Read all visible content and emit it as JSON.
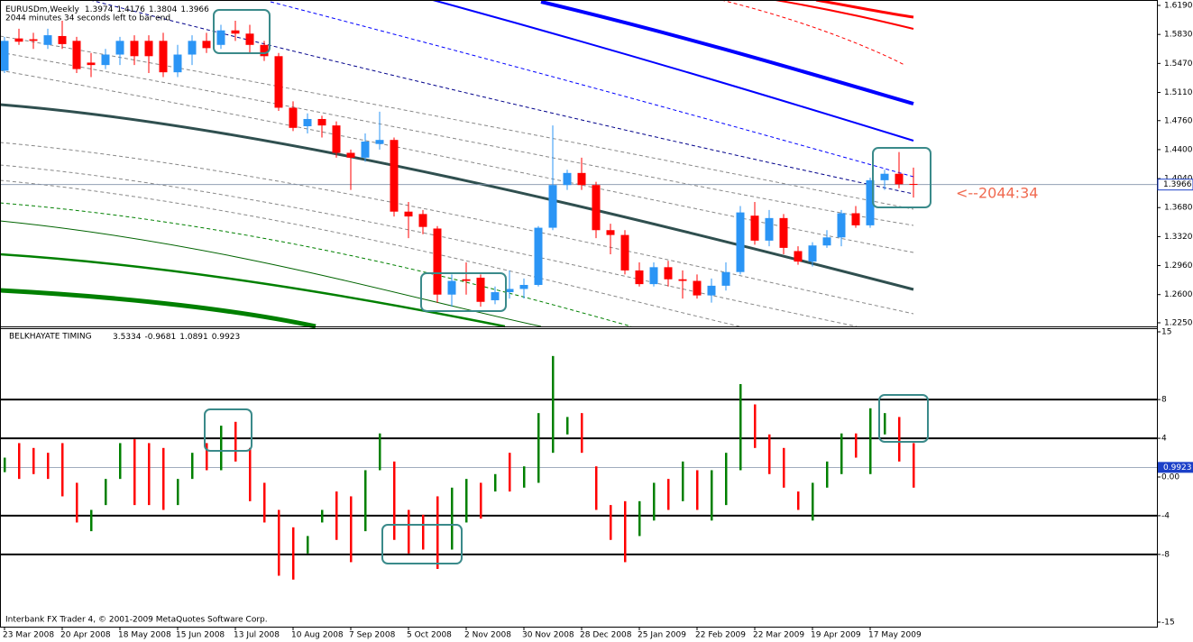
{
  "chart_data": {
    "type": "candlestick",
    "title": "EURUSDm,Weekly",
    "note": "2044 minutes 34 seconds left to bar end",
    "timer_label": "<--2044:34",
    "footer": "Interbank FX Trader 4, © 2001-2009 MetaQuotes Software Corp.",
    "up_color": "#2b95f5",
    "down_color": "#ff0000",
    "ylim": [
      1.2205,
      1.6235
    ],
    "yticks": [
      {
        "value": 1.619,
        "label": "1.6190"
      },
      {
        "value": 1.583,
        "label": "1.5830"
      },
      {
        "value": 1.547,
        "label": "1.5470"
      },
      {
        "value": 1.511,
        "label": "1.5110"
      },
      {
        "value": 1.476,
        "label": "1.4760"
      },
      {
        "value": 1.44,
        "label": "1.4400"
      },
      {
        "value": 1.404,
        "label": "1.4040"
      },
      {
        "value": 1.368,
        "label": "1.3680"
      },
      {
        "value": 1.332,
        "label": "1.3320"
      },
      {
        "value": 1.296,
        "label": "1.2960"
      },
      {
        "value": 1.26,
        "label": "1.2600"
      },
      {
        "value": 1.225,
        "label": "1.2250"
      }
    ],
    "categories": [
      "23 Mar 2008",
      null,
      null,
      null,
      "20 Apr 2008",
      null,
      null,
      null,
      "18 May 2008",
      null,
      null,
      null,
      "15 Jun 2008",
      null,
      null,
      null,
      "13 Jul 2008",
      null,
      null,
      null,
      "10 Aug 2008",
      null,
      null,
      null,
      "7 Sep 2008",
      null,
      null,
      null,
      "5 Oct 2008",
      null,
      null,
      null,
      "2 Nov 2008",
      null,
      null,
      null,
      "30 Nov 2008",
      null,
      null,
      null,
      "28 Dec 2008",
      null,
      null,
      null,
      "25 Jan 2009",
      null,
      null,
      null,
      "22 Feb 2009",
      null,
      null,
      null,
      "22 Mar 2009",
      null,
      null,
      null,
      "19 Apr 2009",
      null,
      null,
      null,
      "17 May 2009",
      null,
      null,
      null
    ],
    "candles": [
      [
        1.538,
        1.58,
        1.535,
        1.575
      ],
      [
        1.578,
        1.59,
        1.57,
        1.574
      ],
      [
        1.577,
        1.585,
        1.565,
        1.575
      ],
      [
        1.57,
        1.59,
        1.565,
        1.582
      ],
      [
        1.581,
        1.6,
        1.565,
        1.571
      ],
      [
        1.575,
        1.58,
        1.535,
        1.54
      ],
      [
        1.548,
        1.56,
        1.53,
        1.545
      ],
      [
        1.545,
        1.565,
        1.54,
        1.558
      ],
      [
        1.558,
        1.58,
        1.545,
        1.575
      ],
      [
        1.575,
        1.582,
        1.545,
        1.556
      ],
      [
        1.575,
        1.582,
        1.535,
        1.556
      ],
      [
        1.575,
        1.585,
        1.53,
        1.536
      ],
      [
        1.536,
        1.57,
        1.53,
        1.558
      ],
      [
        1.558,
        1.582,
        1.545,
        1.575
      ],
      [
        1.575,
        1.585,
        1.56,
        1.566
      ],
      [
        1.57,
        1.595,
        1.565,
        1.588
      ],
      [
        1.588,
        1.6,
        1.575,
        1.584
      ],
      [
        1.584,
        1.595,
        1.56,
        1.57
      ],
      [
        1.57,
        1.575,
        1.55,
        1.556
      ],
      [
        1.556,
        1.56,
        1.488,
        1.492
      ],
      [
        1.492,
        1.5,
        1.463,
        1.467
      ],
      [
        1.469,
        1.485,
        1.46,
        1.478
      ],
      [
        1.478,
        1.482,
        1.455,
        1.47
      ],
      [
        1.47,
        1.475,
        1.43,
        1.436
      ],
      [
        1.436,
        1.44,
        1.39,
        1.43
      ],
      [
        1.43,
        1.46,
        1.425,
        1.45
      ],
      [
        1.447,
        1.487,
        1.44,
        1.452
      ],
      [
        1.452,
        1.455,
        1.357,
        1.363
      ],
      [
        1.363,
        1.375,
        1.33,
        1.357
      ],
      [
        1.36,
        1.365,
        1.335,
        1.344
      ],
      [
        1.342,
        1.345,
        1.25,
        1.26
      ],
      [
        1.26,
        1.285,
        1.245,
        1.277
      ],
      [
        1.279,
        1.3,
        1.26,
        1.277
      ],
      [
        1.281,
        1.285,
        1.245,
        1.251
      ],
      [
        1.253,
        1.27,
        1.248,
        1.263
      ],
      [
        1.263,
        1.29,
        1.255,
        1.267
      ],
      [
        1.267,
        1.28,
        1.255,
        1.272
      ],
      [
        1.272,
        1.345,
        1.27,
        1.343
      ],
      [
        1.343,
        1.47,
        1.34,
        1.396
      ],
      [
        1.396,
        1.415,
        1.39,
        1.411
      ],
      [
        1.411,
        1.43,
        1.39,
        1.396
      ],
      [
        1.396,
        1.4,
        1.33,
        1.34
      ],
      [
        1.34,
        1.348,
        1.31,
        1.334
      ],
      [
        1.334,
        1.34,
        1.285,
        1.29
      ],
      [
        1.29,
        1.3,
        1.27,
        1.273
      ],
      [
        1.273,
        1.3,
        1.27,
        1.294
      ],
      [
        1.294,
        1.302,
        1.27,
        1.279
      ],
      [
        1.279,
        1.29,
        1.255,
        1.277
      ],
      [
        1.277,
        1.285,
        1.255,
        1.259
      ],
      [
        1.259,
        1.28,
        1.25,
        1.271
      ],
      [
        1.271,
        1.3,
        1.265,
        1.288
      ],
      [
        1.288,
        1.37,
        1.285,
        1.362
      ],
      [
        1.358,
        1.375,
        1.322,
        1.327
      ],
      [
        1.327,
        1.365,
        1.32,
        1.355
      ],
      [
        1.355,
        1.36,
        1.31,
        1.318
      ],
      [
        1.314,
        1.32,
        1.297,
        1.301
      ],
      [
        1.301,
        1.325,
        1.295,
        1.321
      ],
      [
        1.321,
        1.34,
        1.318,
        1.331
      ],
      [
        1.331,
        1.365,
        1.32,
        1.361
      ],
      [
        1.361,
        1.37,
        1.343,
        1.346
      ],
      [
        1.346,
        1.405,
        1.343,
        1.402
      ],
      [
        1.402,
        1.415,
        1.39,
        1.41
      ],
      [
        1.41,
        1.437,
        1.392,
        1.397
      ],
      [
        1.3974,
        1.4176,
        1.3804,
        1.3966
      ]
    ],
    "indicator": {
      "type": "bar",
      "title": "BELKHAYATE TIMING",
      "header_values": [
        3.5334,
        -0.9681,
        1.0891,
        0.9923
      ],
      "up_color": "#008000",
      "down_color": "#ff0000",
      "ylim": [
        -15,
        15
      ],
      "yticks": [
        15,
        8,
        4,
        {
          "value": 0,
          "label": "0.00"
        },
        -4,
        -8,
        -15
      ],
      "levels": [
        8,
        4,
        -4,
        -8
      ],
      "bars": [
        [
          0.5,
          2.0
        ],
        [
          3.5,
          -0.2
        ],
        [
          3.0,
          0.3
        ],
        [
          2.5,
          -0.2
        ],
        [
          3.5,
          -2.0
        ],
        [
          -0.6,
          -4.7
        ],
        [
          -5.6,
          -3.4
        ],
        [
          -2.9,
          -0.2
        ],
        [
          -0.2,
          3.5
        ],
        [
          3.9,
          -2.9
        ],
        [
          3.5,
          -2.9
        ],
        [
          3.0,
          -3.4
        ],
        [
          -2.9,
          -0.2
        ],
        [
          -0.2,
          2.5
        ],
        [
          3.5,
          0.7
        ],
        [
          0.7,
          5.3
        ],
        [
          5.7,
          1.6
        ],
        [
          3.0,
          -2.5
        ],
        [
          -0.6,
          -4.7
        ],
        [
          -3.4,
          -10.2
        ],
        [
          -5.2,
          -10.6
        ],
        [
          -7.9,
          -6.1
        ],
        [
          -4.7,
          -3.4
        ],
        [
          -1.5,
          -6.5
        ],
        [
          -2.0,
          -8.8
        ],
        [
          -5.6,
          0.7
        ],
        [
          0.7,
          4.5
        ],
        [
          1.6,
          -6.5
        ],
        [
          -3.4,
          -7.9
        ],
        [
          -3.9,
          -7.5
        ],
        [
          -2.0,
          -9.5
        ],
        [
          -7.5,
          -1.1
        ],
        [
          -4.7,
          -0.2
        ],
        [
          -0.6,
          -4.3
        ],
        [
          -1.5,
          0.3
        ],
        [
          2.5,
          -1.5
        ],
        [
          -1.1,
          1.1
        ],
        [
          -0.6,
          6.6
        ],
        [
          2.5,
          12.5
        ],
        [
          4.4,
          6.2
        ],
        [
          6.6,
          2.5
        ],
        [
          1.1,
          -3.4
        ],
        [
          -2.9,
          -6.5
        ],
        [
          -2.5,
          -8.8
        ],
        [
          -6.1,
          -2.5
        ],
        [
          -4.5,
          -0.6
        ],
        [
          -0.2,
          -3.4
        ],
        [
          -2.5,
          1.6
        ],
        [
          0.7,
          -3.4
        ],
        [
          -4.5,
          0.7
        ],
        [
          -2.9,
          2.5
        ],
        [
          0.7,
          9.6
        ],
        [
          7.5,
          3.0
        ],
        [
          4.4,
          0.3
        ],
        [
          3.0,
          -1.1
        ],
        [
          -1.5,
          -3.4
        ],
        [
          -4.5,
          -0.6
        ],
        [
          -1.1,
          1.6
        ],
        [
          0.3,
          4.5
        ],
        [
          4.5,
          2.0
        ],
        [
          0.3,
          7.1
        ],
        [
          4.4,
          6.6
        ],
        [
          6.2,
          1.6
        ],
        [
          3.5,
          -1.1
        ]
      ]
    }
  }
}
